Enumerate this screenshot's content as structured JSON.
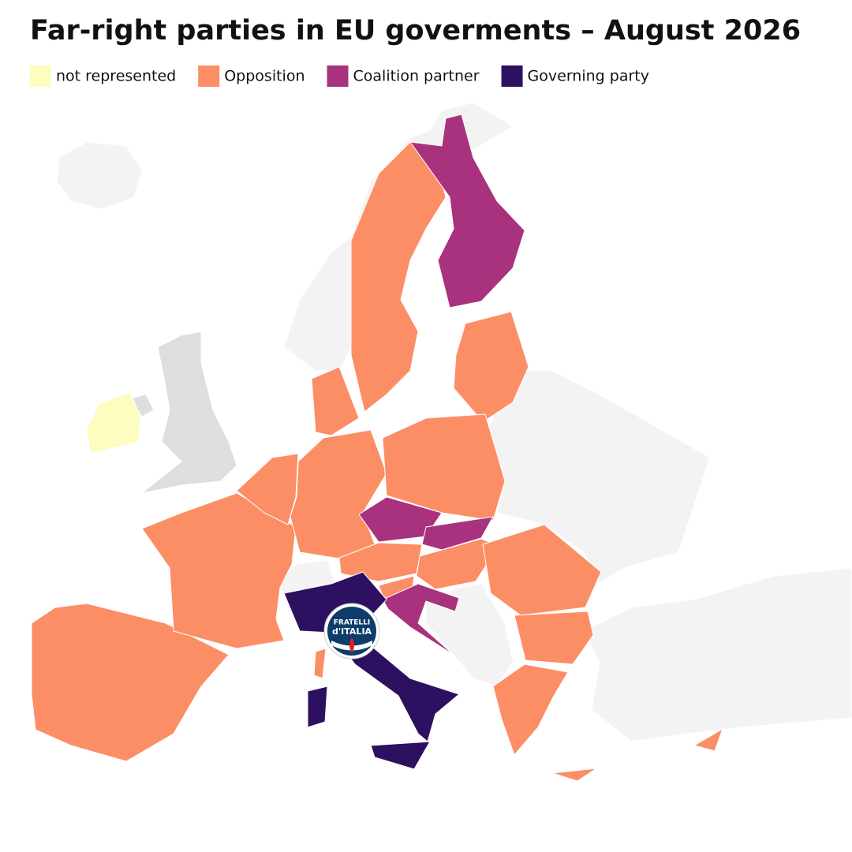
{
  "title": "Far-right parties in EU goverments – August 2026",
  "legend": [
    {
      "label": "not represented",
      "color": "#fcfdbf"
    },
    {
      "label": "Opposition",
      "color": "#fc8e66"
    },
    {
      "label": "Coalition partner",
      "color": "#a8327d"
    },
    {
      "label": "Governing party",
      "color": "#2d1160"
    }
  ],
  "logo": {
    "line1": "FRATELLI",
    "line2": "d'ITALIA"
  }
}
